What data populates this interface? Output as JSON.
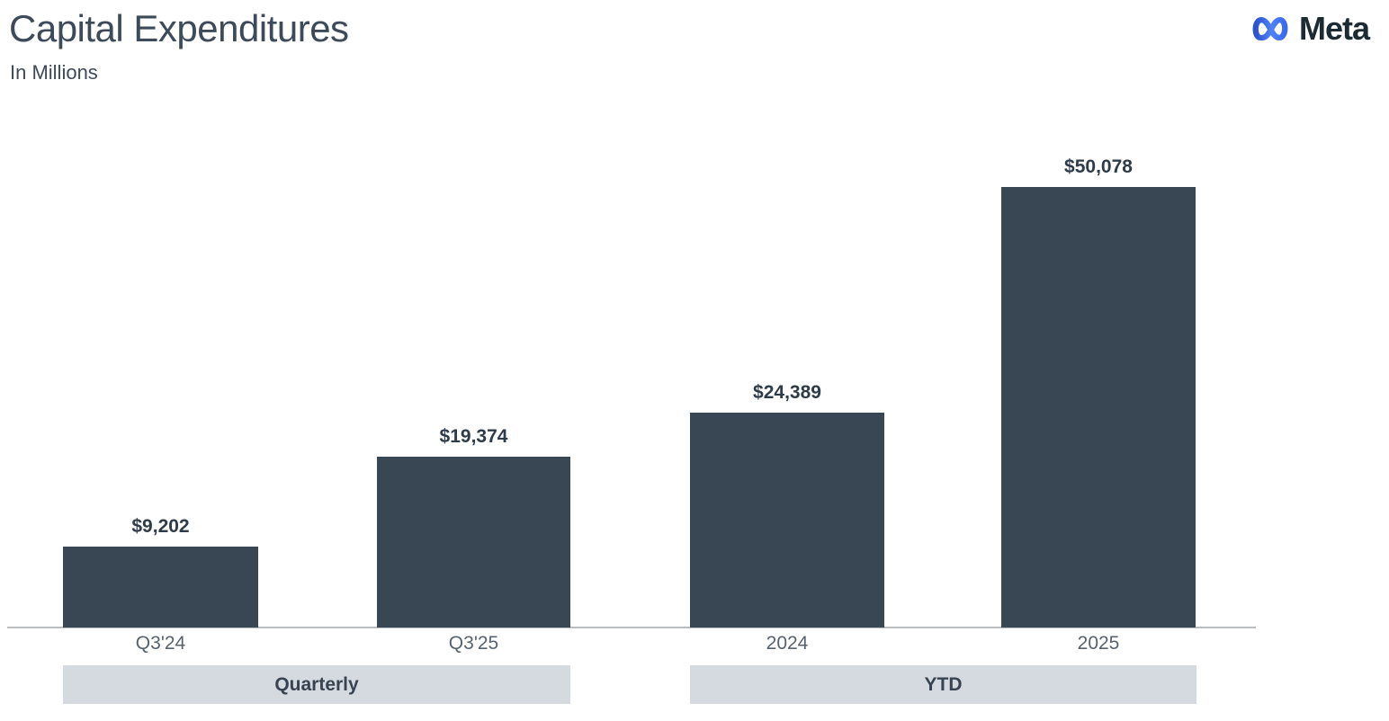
{
  "header": {
    "title": "Capital Expenditures",
    "subtitle": "In Millions"
  },
  "logo": {
    "name": "meta-logo",
    "wordmark": "Meta",
    "infinity_gradient_start": "#2a53cf",
    "infinity_gradient_end": "#4f82f7",
    "wordmark_color": "#1b2a33"
  },
  "chart_data": {
    "type": "bar",
    "title": "Capital Expenditures",
    "subtitle": "In Millions",
    "unit": "USD millions",
    "ylim": [
      0,
      50078
    ],
    "grid": false,
    "legend": "none",
    "bar_color": "#394653",
    "band_color": "#d5dae0",
    "groups": [
      {
        "label": "Quarterly",
        "categories": [
          "Q3'24",
          "Q3'25"
        ],
        "values": [
          9202,
          19374
        ],
        "value_labels": [
          "$9,202",
          "$19,374"
        ]
      },
      {
        "label": "YTD",
        "categories": [
          "2024",
          "2025"
        ],
        "values": [
          24389,
          50078
        ],
        "value_labels": [
          "$24,389",
          "$50,078"
        ]
      }
    ]
  }
}
